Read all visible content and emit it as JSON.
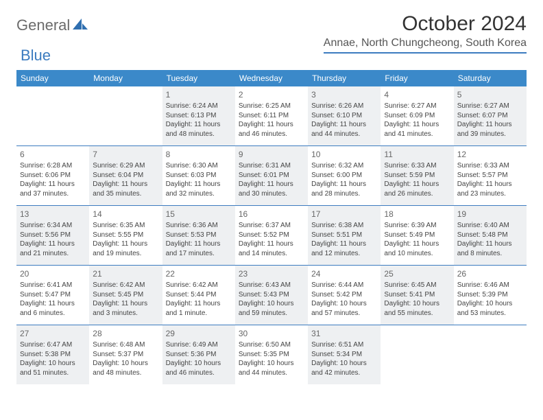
{
  "brand": {
    "part1": "General",
    "part2": "Blue"
  },
  "title": "October 2024",
  "location": "Annae, North Chungcheong, South Korea",
  "colors": {
    "header_bg": "#3b89c9",
    "rule": "#3b7bbf",
    "shade": "#eef0f2",
    "text": "#444444"
  },
  "daysOfWeek": [
    "Sunday",
    "Monday",
    "Tuesday",
    "Wednesday",
    "Thursday",
    "Friday",
    "Saturday"
  ],
  "weeks": [
    [
      {
        "n": "",
        "shade": false
      },
      {
        "n": "",
        "shade": false
      },
      {
        "n": "1",
        "shade": true,
        "sr": "Sunrise: 6:24 AM",
        "ss": "Sunset: 6:13 PM",
        "d1": "Daylight: 11 hours",
        "d2": "and 48 minutes."
      },
      {
        "n": "2",
        "shade": false,
        "sr": "Sunrise: 6:25 AM",
        "ss": "Sunset: 6:11 PM",
        "d1": "Daylight: 11 hours",
        "d2": "and 46 minutes."
      },
      {
        "n": "3",
        "shade": true,
        "sr": "Sunrise: 6:26 AM",
        "ss": "Sunset: 6:10 PM",
        "d1": "Daylight: 11 hours",
        "d2": "and 44 minutes."
      },
      {
        "n": "4",
        "shade": false,
        "sr": "Sunrise: 6:27 AM",
        "ss": "Sunset: 6:09 PM",
        "d1": "Daylight: 11 hours",
        "d2": "and 41 minutes."
      },
      {
        "n": "5",
        "shade": true,
        "sr": "Sunrise: 6:27 AM",
        "ss": "Sunset: 6:07 PM",
        "d1": "Daylight: 11 hours",
        "d2": "and 39 minutes."
      }
    ],
    [
      {
        "n": "6",
        "shade": false,
        "sr": "Sunrise: 6:28 AM",
        "ss": "Sunset: 6:06 PM",
        "d1": "Daylight: 11 hours",
        "d2": "and 37 minutes."
      },
      {
        "n": "7",
        "shade": true,
        "sr": "Sunrise: 6:29 AM",
        "ss": "Sunset: 6:04 PM",
        "d1": "Daylight: 11 hours",
        "d2": "and 35 minutes."
      },
      {
        "n": "8",
        "shade": false,
        "sr": "Sunrise: 6:30 AM",
        "ss": "Sunset: 6:03 PM",
        "d1": "Daylight: 11 hours",
        "d2": "and 32 minutes."
      },
      {
        "n": "9",
        "shade": true,
        "sr": "Sunrise: 6:31 AM",
        "ss": "Sunset: 6:01 PM",
        "d1": "Daylight: 11 hours",
        "d2": "and 30 minutes."
      },
      {
        "n": "10",
        "shade": false,
        "sr": "Sunrise: 6:32 AM",
        "ss": "Sunset: 6:00 PM",
        "d1": "Daylight: 11 hours",
        "d2": "and 28 minutes."
      },
      {
        "n": "11",
        "shade": true,
        "sr": "Sunrise: 6:33 AM",
        "ss": "Sunset: 5:59 PM",
        "d1": "Daylight: 11 hours",
        "d2": "and 26 minutes."
      },
      {
        "n": "12",
        "shade": false,
        "sr": "Sunrise: 6:33 AM",
        "ss": "Sunset: 5:57 PM",
        "d1": "Daylight: 11 hours",
        "d2": "and 23 minutes."
      }
    ],
    [
      {
        "n": "13",
        "shade": true,
        "sr": "Sunrise: 6:34 AM",
        "ss": "Sunset: 5:56 PM",
        "d1": "Daylight: 11 hours",
        "d2": "and 21 minutes."
      },
      {
        "n": "14",
        "shade": false,
        "sr": "Sunrise: 6:35 AM",
        "ss": "Sunset: 5:55 PM",
        "d1": "Daylight: 11 hours",
        "d2": "and 19 minutes."
      },
      {
        "n": "15",
        "shade": true,
        "sr": "Sunrise: 6:36 AM",
        "ss": "Sunset: 5:53 PM",
        "d1": "Daylight: 11 hours",
        "d2": "and 17 minutes."
      },
      {
        "n": "16",
        "shade": false,
        "sr": "Sunrise: 6:37 AM",
        "ss": "Sunset: 5:52 PM",
        "d1": "Daylight: 11 hours",
        "d2": "and 14 minutes."
      },
      {
        "n": "17",
        "shade": true,
        "sr": "Sunrise: 6:38 AM",
        "ss": "Sunset: 5:51 PM",
        "d1": "Daylight: 11 hours",
        "d2": "and 12 minutes."
      },
      {
        "n": "18",
        "shade": false,
        "sr": "Sunrise: 6:39 AM",
        "ss": "Sunset: 5:49 PM",
        "d1": "Daylight: 11 hours",
        "d2": "and 10 minutes."
      },
      {
        "n": "19",
        "shade": true,
        "sr": "Sunrise: 6:40 AM",
        "ss": "Sunset: 5:48 PM",
        "d1": "Daylight: 11 hours",
        "d2": "and 8 minutes."
      }
    ],
    [
      {
        "n": "20",
        "shade": false,
        "sr": "Sunrise: 6:41 AM",
        "ss": "Sunset: 5:47 PM",
        "d1": "Daylight: 11 hours",
        "d2": "and 6 minutes."
      },
      {
        "n": "21",
        "shade": true,
        "sr": "Sunrise: 6:42 AM",
        "ss": "Sunset: 5:45 PM",
        "d1": "Daylight: 11 hours",
        "d2": "and 3 minutes."
      },
      {
        "n": "22",
        "shade": false,
        "sr": "Sunrise: 6:42 AM",
        "ss": "Sunset: 5:44 PM",
        "d1": "Daylight: 11 hours",
        "d2": "and 1 minute."
      },
      {
        "n": "23",
        "shade": true,
        "sr": "Sunrise: 6:43 AM",
        "ss": "Sunset: 5:43 PM",
        "d1": "Daylight: 10 hours",
        "d2": "and 59 minutes."
      },
      {
        "n": "24",
        "shade": false,
        "sr": "Sunrise: 6:44 AM",
        "ss": "Sunset: 5:42 PM",
        "d1": "Daylight: 10 hours",
        "d2": "and 57 minutes."
      },
      {
        "n": "25",
        "shade": true,
        "sr": "Sunrise: 6:45 AM",
        "ss": "Sunset: 5:41 PM",
        "d1": "Daylight: 10 hours",
        "d2": "and 55 minutes."
      },
      {
        "n": "26",
        "shade": false,
        "sr": "Sunrise: 6:46 AM",
        "ss": "Sunset: 5:39 PM",
        "d1": "Daylight: 10 hours",
        "d2": "and 53 minutes."
      }
    ],
    [
      {
        "n": "27",
        "shade": true,
        "sr": "Sunrise: 6:47 AM",
        "ss": "Sunset: 5:38 PM",
        "d1": "Daylight: 10 hours",
        "d2": "and 51 minutes."
      },
      {
        "n": "28",
        "shade": false,
        "sr": "Sunrise: 6:48 AM",
        "ss": "Sunset: 5:37 PM",
        "d1": "Daylight: 10 hours",
        "d2": "and 48 minutes."
      },
      {
        "n": "29",
        "shade": true,
        "sr": "Sunrise: 6:49 AM",
        "ss": "Sunset: 5:36 PM",
        "d1": "Daylight: 10 hours",
        "d2": "and 46 minutes."
      },
      {
        "n": "30",
        "shade": false,
        "sr": "Sunrise: 6:50 AM",
        "ss": "Sunset: 5:35 PM",
        "d1": "Daylight: 10 hours",
        "d2": "and 44 minutes."
      },
      {
        "n": "31",
        "shade": true,
        "sr": "Sunrise: 6:51 AM",
        "ss": "Sunset: 5:34 PM",
        "d1": "Daylight: 10 hours",
        "d2": "and 42 minutes."
      },
      {
        "n": "",
        "shade": false
      },
      {
        "n": "",
        "shade": false
      }
    ]
  ]
}
